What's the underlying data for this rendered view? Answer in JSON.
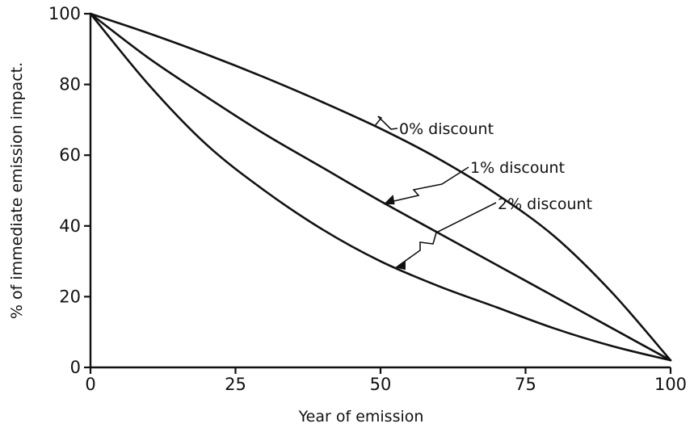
{
  "chart_data": {
    "type": "line",
    "title": "",
    "xlabel": "Year of emission",
    "ylabel": "% of immediate emission impact.",
    "xlim": [
      0,
      100
    ],
    "ylim": [
      0,
      100
    ],
    "x_ticks": [
      "0",
      "25",
      "50",
      "75",
      "100"
    ],
    "y_ticks": [
      "0",
      "20",
      "40",
      "60",
      "80",
      "100"
    ],
    "grid": false,
    "legend": "none",
    "x": [
      0,
      10,
      20,
      30,
      40,
      50,
      60,
      70,
      80,
      90,
      100
    ],
    "series": [
      {
        "name": "0% discount",
        "values": [
          100,
          94.5,
          88.5,
          82,
          75,
          67.5,
          59,
          49,
          37,
          21,
          2
        ]
      },
      {
        "name": "1% discount",
        "values": [
          100,
          87.5,
          76.5,
          66,
          56.5,
          47,
          38,
          29,
          20,
          11,
          2
        ]
      },
      {
        "name": "2% discount",
        "values": [
          100,
          80,
          63,
          50,
          39,
          30,
          23,
          17,
          11,
          6,
          2
        ]
      }
    ]
  }
}
